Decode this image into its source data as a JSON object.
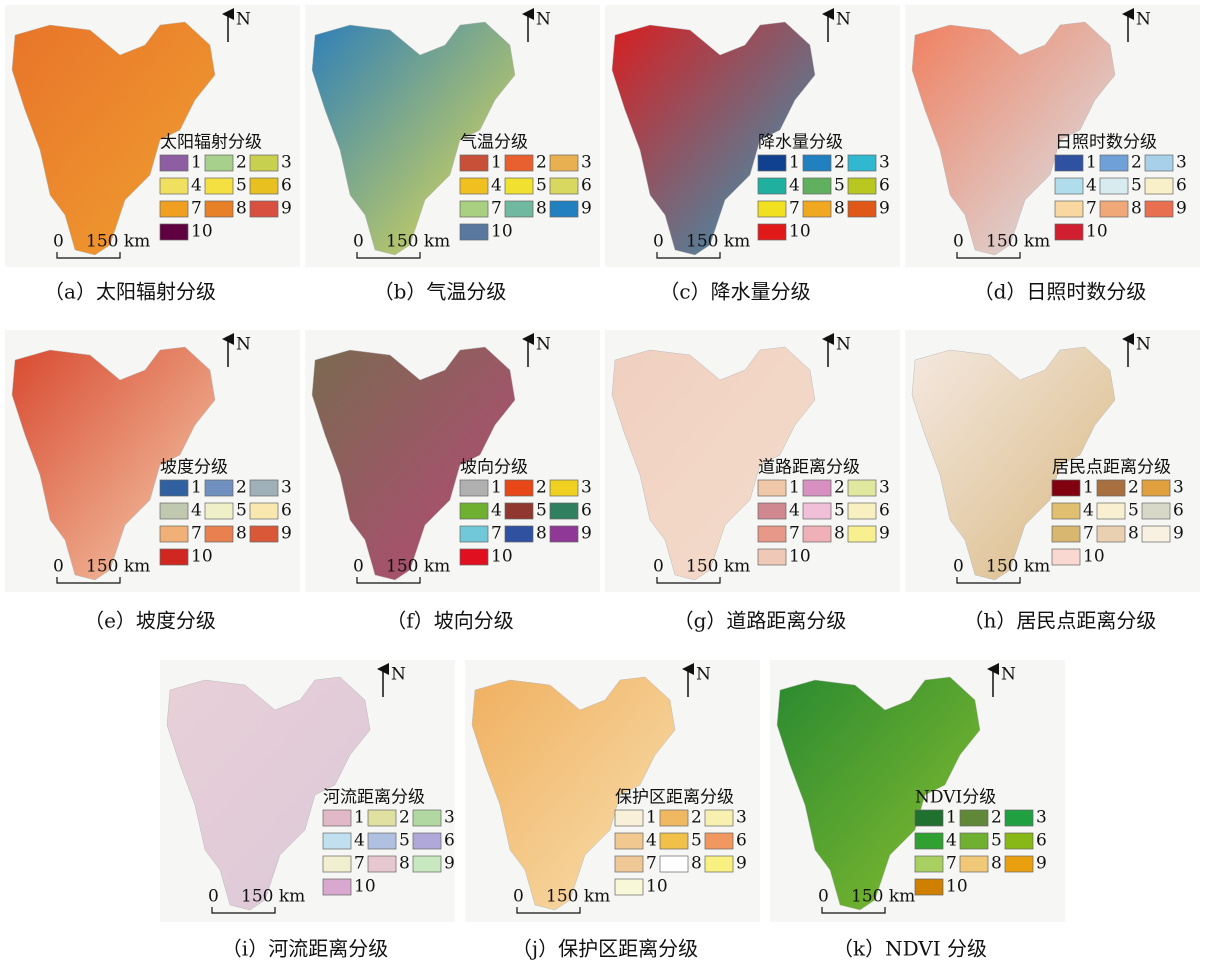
{
  "panels": [
    {
      "caption": "（a）太阳辐射分级",
      "legend_title": "太阳辐射分级",
      "scale_zero": "0",
      "scale_label": "150 km",
      "north": "N",
      "legend": [
        {
          "label": "1",
          "color": "#8e5ea2"
        },
        {
          "label": "2",
          "color": "#a8d08d"
        },
        {
          "label": "3",
          "color": "#c8d050"
        },
        {
          "label": "4",
          "color": "#f0e060"
        },
        {
          "label": "5",
          "color": "#f4e040"
        },
        {
          "label": "6",
          "color": "#e8c020"
        },
        {
          "label": "7",
          "color": "#f0a020"
        },
        {
          "label": "8",
          "color": "#e88028"
        },
        {
          "label": "9",
          "color": "#d85040"
        },
        {
          "label": "10",
          "color": "#600040"
        }
      ]
    },
    {
      "caption": "（b）气温分级",
      "legend_title": "气温分级",
      "scale_zero": "0",
      "scale_label": "150 km",
      "north": "N",
      "legend": [
        {
          "label": "1",
          "color": "#c85038"
        },
        {
          "label": "2",
          "color": "#e86030"
        },
        {
          "label": "3",
          "color": "#e8b050"
        },
        {
          "label": "4",
          "color": "#f0c020"
        },
        {
          "label": "5",
          "color": "#f0e030"
        },
        {
          "label": "6",
          "color": "#d8d860"
        },
        {
          "label": "7",
          "color": "#a8d080"
        },
        {
          "label": "8",
          "color": "#70b8a0"
        },
        {
          "label": "9",
          "color": "#2080c0"
        },
        {
          "label": "10",
          "color": "#5878a0"
        }
      ]
    },
    {
      "caption": "（c）降水量分级",
      "legend_title": "降水量分级",
      "scale_zero": "0",
      "scale_label": "150 km",
      "north": "N",
      "legend": [
        {
          "label": "1",
          "color": "#104090"
        },
        {
          "label": "2",
          "color": "#2080c0"
        },
        {
          "label": "3",
          "color": "#30b8d0"
        },
        {
          "label": "4",
          "color": "#20b0a0"
        },
        {
          "label": "5",
          "color": "#60b060"
        },
        {
          "label": "6",
          "color": "#b8c820"
        },
        {
          "label": "7",
          "color": "#f0e020"
        },
        {
          "label": "8",
          "color": "#f0a820"
        },
        {
          "label": "9",
          "color": "#e05818"
        },
        {
          "label": "10",
          "color": "#e01818"
        }
      ]
    },
    {
      "caption": "（d）日照时数分级",
      "legend_title": "日照时数分级",
      "scale_zero": "0",
      "scale_label": "150 km",
      "north": "N",
      "legend": [
        {
          "label": "1",
          "color": "#3050a0"
        },
        {
          "label": "2",
          "color": "#70a0d8"
        },
        {
          "label": "3",
          "color": "#a8d0e8"
        },
        {
          "label": "4",
          "color": "#b0dcec"
        },
        {
          "label": "5",
          "color": "#d8ecf0"
        },
        {
          "label": "6",
          "color": "#f8f0c8"
        },
        {
          "label": "7",
          "color": "#f8d8a0"
        },
        {
          "label": "8",
          "color": "#f0a878"
        },
        {
          "label": "9",
          "color": "#e87050"
        },
        {
          "label": "10",
          "color": "#d02030"
        }
      ]
    },
    {
      "caption": "（e）坡度分级",
      "legend_title": "坡度分级",
      "scale_zero": "0",
      "scale_label": "150 km",
      "north": "N",
      "legend": [
        {
          "label": "1",
          "color": "#3060a0"
        },
        {
          "label": "2",
          "color": "#7090c0"
        },
        {
          "label": "3",
          "color": "#a0b0b8"
        },
        {
          "label": "4",
          "color": "#c0c8b0"
        },
        {
          "label": "5",
          "color": "#f0f0c8"
        },
        {
          "label": "6",
          "color": "#f8e8b0"
        },
        {
          "label": "7",
          "color": "#f0b078"
        },
        {
          "label": "8",
          "color": "#e88050"
        },
        {
          "label": "9",
          "color": "#d85838"
        },
        {
          "label": "10",
          "color": "#d02820"
        }
      ]
    },
    {
      "caption": "（f）坡向分级",
      "legend_title": "坡向分级",
      "scale_zero": "0",
      "scale_label": "150 km",
      "north": "N",
      "legend": [
        {
          "label": "1",
          "color": "#b0b0b0"
        },
        {
          "label": "2",
          "color": "#e84818"
        },
        {
          "label": "3",
          "color": "#f0d020"
        },
        {
          "label": "4",
          "color": "#70b030"
        },
        {
          "label": "5",
          "color": "#903830"
        },
        {
          "label": "6",
          "color": "#308060"
        },
        {
          "label": "7",
          "color": "#70c8d8"
        },
        {
          "label": "8",
          "color": "#3050a0"
        },
        {
          "label": "9",
          "color": "#903898"
        },
        {
          "label": "10",
          "color": "#e01020"
        }
      ]
    },
    {
      "caption": "（g）道路距离分级",
      "legend_title": "道路距离分级",
      "scale_zero": "0",
      "scale_label": "150 km",
      "north": "N",
      "legend": [
        {
          "label": "1",
          "color": "#f0c8a8"
        },
        {
          "label": "2",
          "color": "#d890c0"
        },
        {
          "label": "3",
          "color": "#e0e8a0"
        },
        {
          "label": "4",
          "color": "#d08890"
        },
        {
          "label": "5",
          "color": "#f0c0d8"
        },
        {
          "label": "6",
          "color": "#f8f0c0"
        },
        {
          "label": "7",
          "color": "#e89888"
        },
        {
          "label": "8",
          "color": "#f0b0b8"
        },
        {
          "label": "9",
          "color": "#f8f090"
        },
        {
          "label": "10",
          "color": "#f0c8b8"
        }
      ]
    },
    {
      "caption": "（h）居民点距离分级",
      "legend_title": "居民点距离分级",
      "scale_zero": "0",
      "scale_label": "150 km",
      "north": "N",
      "legend": [
        {
          "label": "1",
          "color": "#800010"
        },
        {
          "label": "2",
          "color": "#a87040"
        },
        {
          "label": "3",
          "color": "#e0a040"
        },
        {
          "label": "4",
          "color": "#e0c070"
        },
        {
          "label": "5",
          "color": "#f8f0d0"
        },
        {
          "label": "6",
          "color": "#d8d8c8"
        },
        {
          "label": "7",
          "color": "#d8b870"
        },
        {
          "label": "8",
          "color": "#e8d0b0"
        },
        {
          "label": "9",
          "color": "#f8f0e0"
        },
        {
          "label": "10",
          "color": "#f8d8d0"
        }
      ]
    },
    {
      "caption": "（i）河流距离分级",
      "legend_title": "河流距离分级",
      "scale_zero": "0",
      "scale_label": "150 km",
      "north": "N",
      "legend": [
        {
          "label": "1",
          "color": "#e0b8c8"
        },
        {
          "label": "2",
          "color": "#e0e0a0"
        },
        {
          "label": "3",
          "color": "#b0d8a0"
        },
        {
          "label": "4",
          "color": "#c0e0f0"
        },
        {
          "label": "5",
          "color": "#b0c0e0"
        },
        {
          "label": "6",
          "color": "#b0a8d8"
        },
        {
          "label": "7",
          "color": "#f0f0d0"
        },
        {
          "label": "8",
          "color": "#e8c8d0"
        },
        {
          "label": "9",
          "color": "#c8e8c0"
        },
        {
          "label": "10",
          "color": "#d8a8d0"
        }
      ]
    },
    {
      "caption": "（j）保护区距离分级",
      "legend_title": "保护区距离分级",
      "scale_zero": "0",
      "scale_label": "150 km",
      "north": "N",
      "legend": [
        {
          "label": "1",
          "color": "#f8f0d8"
        },
        {
          "label": "2",
          "color": "#f0b860"
        },
        {
          "label": "3",
          "color": "#f8f0b0"
        },
        {
          "label": "4",
          "color": "#f0c890"
        },
        {
          "label": "5",
          "color": "#f0c048"
        },
        {
          "label": "6",
          "color": "#f09860"
        },
        {
          "label": "7",
          "color": "#f0c898"
        },
        {
          "label": "8",
          "color": "#ffffff"
        },
        {
          "label": "9",
          "color": "#f8f080"
        },
        {
          "label": "10",
          "color": "#f8f8d8"
        }
      ]
    },
    {
      "caption": "（k）NDVI 分级",
      "legend_title": "NDVI分级",
      "scale_zero": "0",
      "scale_label": "150 km",
      "north": "N",
      "legend": [
        {
          "label": "1",
          "color": "#207030"
        },
        {
          "label": "2",
          "color": "#608838"
        },
        {
          "label": "3",
          "color": "#20a040"
        },
        {
          "label": "4",
          "color": "#30a030"
        },
        {
          "label": "5",
          "color": "#70b030"
        },
        {
          "label": "6",
          "color": "#88b818"
        },
        {
          "label": "7",
          "color": "#a8d060"
        },
        {
          "label": "8",
          "color": "#f0c878"
        },
        {
          "label": "9",
          "color": "#e8a010"
        },
        {
          "label": "10",
          "color": "#d08000"
        }
      ]
    }
  ]
}
